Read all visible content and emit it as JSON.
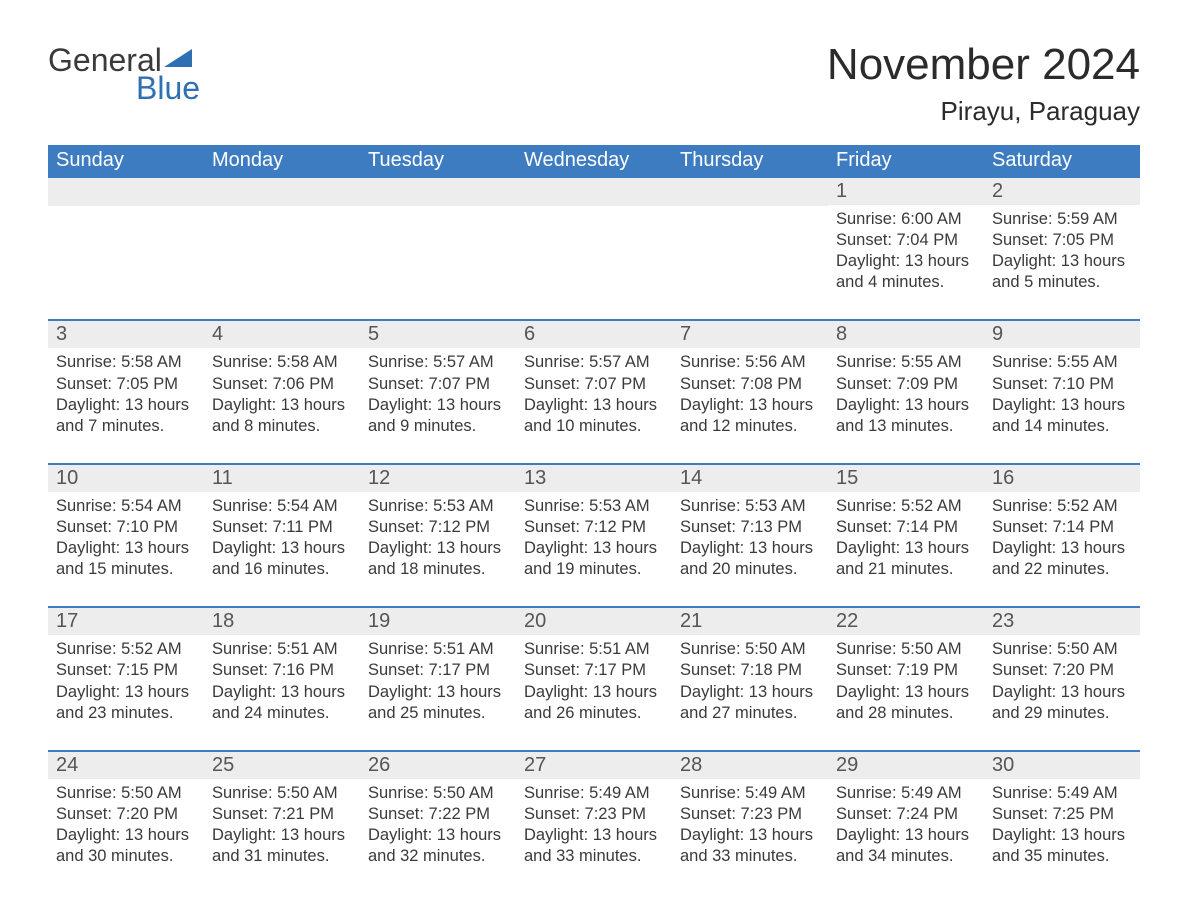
{
  "brand": {
    "word1": "General",
    "word2": "Blue"
  },
  "title": "November 2024",
  "location": "Pirayu, Paraguay",
  "colors": {
    "header_bg": "#3d7cc0",
    "header_text": "#ffffff",
    "daynum_bg": "#ededed",
    "daynum_text": "#555555",
    "body_text": "#3a3a3a",
    "rule": "#3d7cc0",
    "logo_blue": "#2f6fb3",
    "page_bg": "#ffffff"
  },
  "typography": {
    "title_fontsize": 44,
    "location_fontsize": 26,
    "weekday_fontsize": 20,
    "daynum_fontsize": 20,
    "detail_fontsize": 16.5
  },
  "weekdays": [
    "Sunday",
    "Monday",
    "Tuesday",
    "Wednesday",
    "Thursday",
    "Friday",
    "Saturday"
  ],
  "weeks": [
    [
      null,
      null,
      null,
      null,
      null,
      {
        "n": "1",
        "sunrise": "Sunrise: 6:00 AM",
        "sunset": "Sunset: 7:04 PM",
        "daylight": "Daylight: 13 hours and 4 minutes."
      },
      {
        "n": "2",
        "sunrise": "Sunrise: 5:59 AM",
        "sunset": "Sunset: 7:05 PM",
        "daylight": "Daylight: 13 hours and 5 minutes."
      }
    ],
    [
      {
        "n": "3",
        "sunrise": "Sunrise: 5:58 AM",
        "sunset": "Sunset: 7:05 PM",
        "daylight": "Daylight: 13 hours and 7 minutes."
      },
      {
        "n": "4",
        "sunrise": "Sunrise: 5:58 AM",
        "sunset": "Sunset: 7:06 PM",
        "daylight": "Daylight: 13 hours and 8 minutes."
      },
      {
        "n": "5",
        "sunrise": "Sunrise: 5:57 AM",
        "sunset": "Sunset: 7:07 PM",
        "daylight": "Daylight: 13 hours and 9 minutes."
      },
      {
        "n": "6",
        "sunrise": "Sunrise: 5:57 AM",
        "sunset": "Sunset: 7:07 PM",
        "daylight": "Daylight: 13 hours and 10 minutes."
      },
      {
        "n": "7",
        "sunrise": "Sunrise: 5:56 AM",
        "sunset": "Sunset: 7:08 PM",
        "daylight": "Daylight: 13 hours and 12 minutes."
      },
      {
        "n": "8",
        "sunrise": "Sunrise: 5:55 AM",
        "sunset": "Sunset: 7:09 PM",
        "daylight": "Daylight: 13 hours and 13 minutes."
      },
      {
        "n": "9",
        "sunrise": "Sunrise: 5:55 AM",
        "sunset": "Sunset: 7:10 PM",
        "daylight": "Daylight: 13 hours and 14 minutes."
      }
    ],
    [
      {
        "n": "10",
        "sunrise": "Sunrise: 5:54 AM",
        "sunset": "Sunset: 7:10 PM",
        "daylight": "Daylight: 13 hours and 15 minutes."
      },
      {
        "n": "11",
        "sunrise": "Sunrise: 5:54 AM",
        "sunset": "Sunset: 7:11 PM",
        "daylight": "Daylight: 13 hours and 16 minutes."
      },
      {
        "n": "12",
        "sunrise": "Sunrise: 5:53 AM",
        "sunset": "Sunset: 7:12 PM",
        "daylight": "Daylight: 13 hours and 18 minutes."
      },
      {
        "n": "13",
        "sunrise": "Sunrise: 5:53 AM",
        "sunset": "Sunset: 7:12 PM",
        "daylight": "Daylight: 13 hours and 19 minutes."
      },
      {
        "n": "14",
        "sunrise": "Sunrise: 5:53 AM",
        "sunset": "Sunset: 7:13 PM",
        "daylight": "Daylight: 13 hours and 20 minutes."
      },
      {
        "n": "15",
        "sunrise": "Sunrise: 5:52 AM",
        "sunset": "Sunset: 7:14 PM",
        "daylight": "Daylight: 13 hours and 21 minutes."
      },
      {
        "n": "16",
        "sunrise": "Sunrise: 5:52 AM",
        "sunset": "Sunset: 7:14 PM",
        "daylight": "Daylight: 13 hours and 22 minutes."
      }
    ],
    [
      {
        "n": "17",
        "sunrise": "Sunrise: 5:52 AM",
        "sunset": "Sunset: 7:15 PM",
        "daylight": "Daylight: 13 hours and 23 minutes."
      },
      {
        "n": "18",
        "sunrise": "Sunrise: 5:51 AM",
        "sunset": "Sunset: 7:16 PM",
        "daylight": "Daylight: 13 hours and 24 minutes."
      },
      {
        "n": "19",
        "sunrise": "Sunrise: 5:51 AM",
        "sunset": "Sunset: 7:17 PM",
        "daylight": "Daylight: 13 hours and 25 minutes."
      },
      {
        "n": "20",
        "sunrise": "Sunrise: 5:51 AM",
        "sunset": "Sunset: 7:17 PM",
        "daylight": "Daylight: 13 hours and 26 minutes."
      },
      {
        "n": "21",
        "sunrise": "Sunrise: 5:50 AM",
        "sunset": "Sunset: 7:18 PM",
        "daylight": "Daylight: 13 hours and 27 minutes."
      },
      {
        "n": "22",
        "sunrise": "Sunrise: 5:50 AM",
        "sunset": "Sunset: 7:19 PM",
        "daylight": "Daylight: 13 hours and 28 minutes."
      },
      {
        "n": "23",
        "sunrise": "Sunrise: 5:50 AM",
        "sunset": "Sunset: 7:20 PM",
        "daylight": "Daylight: 13 hours and 29 minutes."
      }
    ],
    [
      {
        "n": "24",
        "sunrise": "Sunrise: 5:50 AM",
        "sunset": "Sunset: 7:20 PM",
        "daylight": "Daylight: 13 hours and 30 minutes."
      },
      {
        "n": "25",
        "sunrise": "Sunrise: 5:50 AM",
        "sunset": "Sunset: 7:21 PM",
        "daylight": "Daylight: 13 hours and 31 minutes."
      },
      {
        "n": "26",
        "sunrise": "Sunrise: 5:50 AM",
        "sunset": "Sunset: 7:22 PM",
        "daylight": "Daylight: 13 hours and 32 minutes."
      },
      {
        "n": "27",
        "sunrise": "Sunrise: 5:49 AM",
        "sunset": "Sunset: 7:23 PM",
        "daylight": "Daylight: 13 hours and 33 minutes."
      },
      {
        "n": "28",
        "sunrise": "Sunrise: 5:49 AM",
        "sunset": "Sunset: 7:23 PM",
        "daylight": "Daylight: 13 hours and 33 minutes."
      },
      {
        "n": "29",
        "sunrise": "Sunrise: 5:49 AM",
        "sunset": "Sunset: 7:24 PM",
        "daylight": "Daylight: 13 hours and 34 minutes."
      },
      {
        "n": "30",
        "sunrise": "Sunrise: 5:49 AM",
        "sunset": "Sunset: 7:25 PM",
        "daylight": "Daylight: 13 hours and 35 minutes."
      }
    ]
  ]
}
